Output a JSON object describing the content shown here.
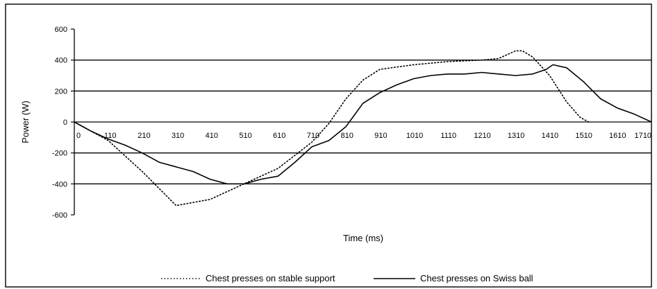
{
  "chart_data": {
    "type": "line",
    "title": "",
    "xlabel": "Time (ms)",
    "ylabel": "Power (W)",
    "x_ticks": [
      "0",
      "110",
      "210",
      "310",
      "410",
      "510",
      "610",
      "710",
      "810",
      "910",
      "1010",
      "1110",
      "1210",
      "1310",
      "1410",
      "1510",
      "1610",
      "1710"
    ],
    "xlim": [
      10,
      1710
    ],
    "ylim": [
      -600,
      600
    ],
    "y_ticks": [
      600,
      400,
      200,
      0,
      -200,
      -400,
      -600
    ],
    "grid": "horizontal lines at 400, 200, 0, -200, -400",
    "legend_position": "bottom",
    "series": [
      {
        "name": "Chest presses on stable support",
        "style": "dotted",
        "color": "#000000",
        "x": [
          10,
          110,
          210,
          310,
          410,
          510,
          610,
          710,
          760,
          810,
          860,
          910,
          1010,
          1110,
          1210,
          1260,
          1310,
          1330,
          1360,
          1410,
          1460,
          1500,
          1525
        ],
        "y": [
          0,
          -120,
          -320,
          -540,
          -500,
          -400,
          -300,
          -130,
          -10,
          150,
          270,
          340,
          370,
          390,
          400,
          410,
          460,
          460,
          420,
          300,
          130,
          30,
          0
        ]
      },
      {
        "name": "Chest presses on Swiss ball",
        "style": "solid",
        "color": "#000000",
        "x": [
          10,
          60,
          110,
          160,
          210,
          260,
          310,
          360,
          410,
          460,
          510,
          560,
          610,
          660,
          710,
          760,
          810,
          860,
          910,
          960,
          1010,
          1060,
          1110,
          1160,
          1210,
          1260,
          1310,
          1360,
          1400,
          1420,
          1460,
          1510,
          1560,
          1610,
          1660,
          1710
        ],
        "y": [
          0,
          -60,
          -110,
          -150,
          -200,
          -260,
          -290,
          -320,
          -370,
          -400,
          -400,
          -370,
          -350,
          -260,
          -160,
          -120,
          -30,
          120,
          190,
          240,
          280,
          300,
          310,
          310,
          320,
          310,
          300,
          310,
          340,
          370,
          350,
          260,
          150,
          90,
          50,
          0
        ]
      }
    ]
  }
}
